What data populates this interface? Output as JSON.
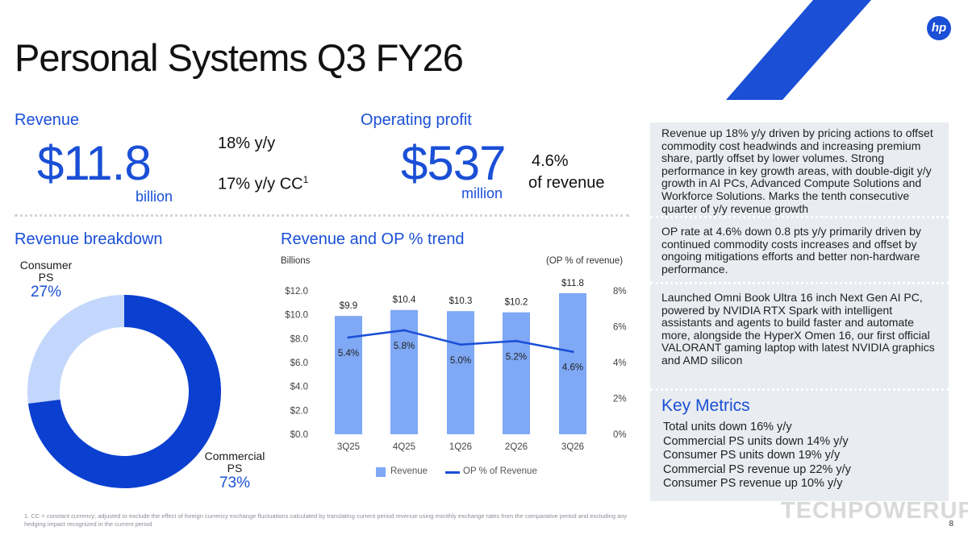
{
  "title": "Personal Systems Q3 FY26",
  "revenue": {
    "heading": "Revenue",
    "amount": "$11.8",
    "unit": "billion",
    "growth": "18% y/y",
    "growth_cc": "17% y/y CC",
    "footnote_marker": "1"
  },
  "operating_profit": {
    "heading": "Operating profit",
    "amount": "$537",
    "unit": "million",
    "rate": "4.6%",
    "rate_label": "of revenue"
  },
  "breakdown": {
    "heading": "Revenue breakdown",
    "consumer_label_line1": "Consumer",
    "consumer_label_line2": "PS",
    "consumer_pct": "27%",
    "commercial_label_line1": "Commercial",
    "commercial_label_line2": "PS",
    "commercial_pct": "73%"
  },
  "trend": {
    "heading": "Revenue and OP % trend",
    "left_axis_label": "Billions",
    "right_axis_label": "(OP % of revenue)",
    "legend_revenue": "Revenue",
    "legend_op": "OP % of Revenue"
  },
  "colors": {
    "brand_blue": "#1a4fd6",
    "bar": "#7fa8f5",
    "line": "#1a4fd6",
    "donut_commercial": "#0b3fd0",
    "donut_consumer": "#c3d6fb",
    "panel_bg": "#e9ecf1"
  },
  "chart_data": [
    {
      "type": "pie",
      "title": "Revenue breakdown",
      "categories": [
        "Consumer PS",
        "Commercial PS"
      ],
      "values": [
        27,
        73
      ]
    },
    {
      "type": "bar",
      "title": "Revenue and OP % trend",
      "categories": [
        "3Q25",
        "4Q25",
        "1Q26",
        "2Q26",
        "3Q26"
      ],
      "series": [
        {
          "name": "Revenue",
          "type": "bar",
          "axis": "left",
          "values": [
            9.9,
            10.4,
            10.3,
            10.2,
            11.8
          ],
          "labels": [
            "$9.9",
            "$10.4",
            "$10.3",
            "$10.2",
            "$11.8"
          ]
        },
        {
          "name": "OP % of Revenue",
          "type": "line",
          "axis": "right",
          "values": [
            5.4,
            5.8,
            5.0,
            5.2,
            4.6
          ],
          "labels": [
            "5.4%",
            "5.8%",
            "5.0%",
            "5.2%",
            "4.6%"
          ]
        }
      ],
      "ylabel": "Billions",
      "y2label": "(OP % of revenue)",
      "ylim": [
        0,
        12
      ],
      "y2lim": [
        0,
        8
      ],
      "yticks": [
        "$0.0",
        "$2.0",
        "$4.0",
        "$6.0",
        "$8.0",
        "$10.0",
        "$12.0"
      ],
      "y2ticks": [
        "0%",
        "2%",
        "4%",
        "6%",
        "8%"
      ],
      "legend": "bottom",
      "grid": false
    }
  ],
  "panel": {
    "para1": "Revenue up 18% y/y driven by pricing actions to offset commodity cost headwinds and increasing premium share, partly offset by lower volumes. Strong performance in key growth areas, with double-digit y/y growth in AI PCs, Advanced Compute Solutions and Workforce Solutions. Marks the tenth consecutive quarter of y/y revenue growth",
    "para2": "OP rate at 4.6% down 0.8 pts y/y primarily driven by continued commodity costs increases and offset by ongoing mitigations efforts and better non-hardware performance.",
    "para3": "Launched Omni Book Ultra 16 inch Next Gen AI PC, powered by NVIDIA RTX Spark with intelligent assistants and agents to build faster and automate more, alongside the HyperX Omen 16, our first official VALORANT gaming laptop with latest NVIDIA graphics and AMD silicon",
    "key_metrics_heading": "Key Metrics",
    "key_metrics": [
      "Total units down 16% y/y",
      "Commercial PS units down 14% y/y",
      "Consumer PS units down 19% y/y",
      "Commercial PS revenue up 22% y/y",
      "Consumer PS revenue up 10% y/y"
    ]
  },
  "logo_text": "hp",
  "footnote": "1.  CC = constant currency; adjusted to exclude the effect of foreign currency exchange fluctuations calculated by translating current period revenue using monthly exchange rates from the comparative period and excluding any hedging impact recognized in the current period",
  "page_number": "8",
  "watermark": "TECHPOWERUP"
}
